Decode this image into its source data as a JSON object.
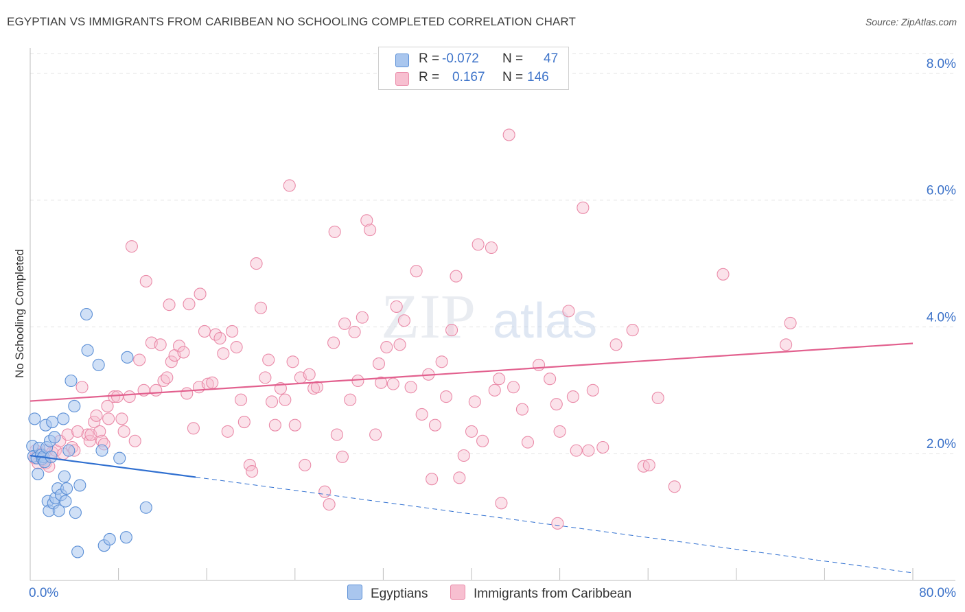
{
  "title": "EGYPTIAN VS IMMIGRANTS FROM CARIBBEAN NO SCHOOLING COMPLETED CORRELATION CHART",
  "source": "Source: ZipAtlas.com",
  "watermark": {
    "zip": "ZIP",
    "atlas": "atlas"
  },
  "legend": {
    "egyptians": {
      "r_label": "R =",
      "r_value": "-0.072",
      "n_label": "N =",
      "n_value": "47"
    },
    "caribbean": {
      "r_label": "R =",
      "r_value": "0.167",
      "n_label": "N =",
      "n_value": "146"
    }
  },
  "bottom_legend": {
    "egyptians": "Egyptians",
    "caribbean": "Immigrants from Caribbean"
  },
  "colors": {
    "egyptians_fill": "#a9c6ee",
    "egyptians_stroke": "#5b8fd6",
    "egyptians_line": "#2f6fd0",
    "caribbean_fill": "#f7bfd0",
    "caribbean_stroke": "#ea8aa8",
    "caribbean_line": "#e2608e",
    "tick_label": "#3d73c9",
    "grid": "#e3e3e3"
  },
  "chart_data": {
    "type": "scatter",
    "title": "EGYPTIAN VS IMMIGRANTS FROM CARIBBEAN NO SCHOOLING COMPLETED CORRELATION CHART",
    "xlabel": "",
    "ylabel": "No Schooling Completed",
    "xlim": [
      0,
      80
    ],
    "ylim": [
      0,
      8.4
    ],
    "x_tick_labels": [
      "0.0%",
      "80.0%"
    ],
    "y_ticks": [
      2,
      4,
      6,
      8
    ],
    "y_tick_labels": [
      "2.0%",
      "4.0%",
      "6.0%",
      "8.0%"
    ],
    "series": [
      {
        "name": "Egyptians",
        "trend": {
          "x0": 0,
          "y0": 1.97,
          "x1": 15,
          "y1": 1.63,
          "dashed_to_x": 80,
          "dashed_to_y": 0.12
        },
        "points": [
          [
            0.2,
            2.12
          ],
          [
            0.3,
            1.96
          ],
          [
            0.4,
            2.55
          ],
          [
            0.6,
            1.93
          ],
          [
            0.7,
            1.68
          ],
          [
            0.8,
            2.09
          ],
          [
            1.0,
            1.98
          ],
          [
            1.1,
            1.92
          ],
          [
            1.2,
            1.95
          ],
          [
            1.3,
            1.87
          ],
          [
            1.4,
            2.45
          ],
          [
            1.5,
            2.1
          ],
          [
            1.6,
            1.25
          ],
          [
            1.7,
            1.1
          ],
          [
            1.8,
            2.2
          ],
          [
            1.9,
            1.95
          ],
          [
            2.0,
            2.5
          ],
          [
            2.1,
            1.22
          ],
          [
            2.2,
            2.26
          ],
          [
            2.3,
            1.3
          ],
          [
            2.5,
            1.45
          ],
          [
            2.6,
            1.1
          ],
          [
            2.8,
            1.35
          ],
          [
            3.0,
            2.55
          ],
          [
            3.1,
            1.64
          ],
          [
            3.2,
            1.25
          ],
          [
            3.3,
            1.45
          ],
          [
            3.5,
            2.05
          ],
          [
            3.7,
            3.15
          ],
          [
            4.0,
            2.75
          ],
          [
            4.1,
            1.07
          ],
          [
            4.3,
            0.45
          ],
          [
            4.5,
            1.5
          ],
          [
            5.1,
            4.2
          ],
          [
            5.2,
            3.63
          ],
          [
            6.2,
            3.4
          ],
          [
            6.5,
            2.05
          ],
          [
            6.7,
            0.55
          ],
          [
            7.2,
            0.65
          ],
          [
            8.1,
            1.93
          ],
          [
            8.7,
            0.68
          ],
          [
            8.8,
            3.52
          ],
          [
            10.5,
            1.15
          ]
        ]
      },
      {
        "name": "Immigrants from Caribbean",
        "trend": {
          "x0": 0,
          "y0": 2.83,
          "x1": 80,
          "y1": 3.74
        },
        "points": [
          [
            0.4,
            1.93
          ],
          [
            0.5,
            2.05
          ],
          [
            0.7,
            1.85
          ],
          [
            1.0,
            2.0
          ],
          [
            1.2,
            1.9
          ],
          [
            1.4,
            1.85
          ],
          [
            1.5,
            2.05
          ],
          [
            1.7,
            1.8
          ],
          [
            2.0,
            2.02
          ],
          [
            2.3,
            2.05
          ],
          [
            2.7,
            2.2
          ],
          [
            3.0,
            2.0
          ],
          [
            3.4,
            2.3
          ],
          [
            3.8,
            2.1
          ],
          [
            4.0,
            2.05
          ],
          [
            4.3,
            2.35
          ],
          [
            4.7,
            3.05
          ],
          [
            5.2,
            2.3
          ],
          [
            5.4,
            2.2
          ],
          [
            5.5,
            2.3
          ],
          [
            5.8,
            2.5
          ],
          [
            6.0,
            2.6
          ],
          [
            6.3,
            2.35
          ],
          [
            6.5,
            2.2
          ],
          [
            6.7,
            2.15
          ],
          [
            7.0,
            2.75
          ],
          [
            7.1,
            2.55
          ],
          [
            7.6,
            2.9
          ],
          [
            7.9,
            2.9
          ],
          [
            8.3,
            2.55
          ],
          [
            8.5,
            2.35
          ],
          [
            9.0,
            2.9
          ],
          [
            9.2,
            5.27
          ],
          [
            9.5,
            2.2
          ],
          [
            9.9,
            3.48
          ],
          [
            10.3,
            3.0
          ],
          [
            10.5,
            4.72
          ],
          [
            11.0,
            3.75
          ],
          [
            11.4,
            3.0
          ],
          [
            11.8,
            3.72
          ],
          [
            12.1,
            3.15
          ],
          [
            12.4,
            3.2
          ],
          [
            12.6,
            4.35
          ],
          [
            12.8,
            3.45
          ],
          [
            13.1,
            3.55
          ],
          [
            13.5,
            3.7
          ],
          [
            13.9,
            3.6
          ],
          [
            14.2,
            2.95
          ],
          [
            14.4,
            4.36
          ],
          [
            14.8,
            2.4
          ],
          [
            15.3,
            3.05
          ],
          [
            15.4,
            4.52
          ],
          [
            15.8,
            3.93
          ],
          [
            16.1,
            3.1
          ],
          [
            16.5,
            3.12
          ],
          [
            16.8,
            3.88
          ],
          [
            17.2,
            3.82
          ],
          [
            17.5,
            3.58
          ],
          [
            17.9,
            2.35
          ],
          [
            18.3,
            3.93
          ],
          [
            18.7,
            3.68
          ],
          [
            19.1,
            2.85
          ],
          [
            19.4,
            2.5
          ],
          [
            19.9,
            1.82
          ],
          [
            20.1,
            1.72
          ],
          [
            20.5,
            5.0
          ],
          [
            20.9,
            4.3
          ],
          [
            21.3,
            3.2
          ],
          [
            21.6,
            3.48
          ],
          [
            21.9,
            2.82
          ],
          [
            22.2,
            2.45
          ],
          [
            22.7,
            3.03
          ],
          [
            23.1,
            2.85
          ],
          [
            23.5,
            6.23
          ],
          [
            23.8,
            3.45
          ],
          [
            24.0,
            2.45
          ],
          [
            24.5,
            3.2
          ],
          [
            24.9,
            1.82
          ],
          [
            25.3,
            3.25
          ],
          [
            25.7,
            3.03
          ],
          [
            26.0,
            3.05
          ],
          [
            26.7,
            1.4
          ],
          [
            27.1,
            1.2
          ],
          [
            27.5,
            3.75
          ],
          [
            27.6,
            5.5
          ],
          [
            27.8,
            2.3
          ],
          [
            28.3,
            1.95
          ],
          [
            28.5,
            4.05
          ],
          [
            29.0,
            2.85
          ],
          [
            29.4,
            3.92
          ],
          [
            29.7,
            3.15
          ],
          [
            30.1,
            4.15
          ],
          [
            30.5,
            5.68
          ],
          [
            30.8,
            5.53
          ],
          [
            31.3,
            2.3
          ],
          [
            31.6,
            3.42
          ],
          [
            31.8,
            3.12
          ],
          [
            32.3,
            3.68
          ],
          [
            32.9,
            3.1
          ],
          [
            33.2,
            4.32
          ],
          [
            33.5,
            3.72
          ],
          [
            33.9,
            4.1
          ],
          [
            34.5,
            3.05
          ],
          [
            35.0,
            4.88
          ],
          [
            35.5,
            2.62
          ],
          [
            36.1,
            3.25
          ],
          [
            36.4,
            1.6
          ],
          [
            36.7,
            2.45
          ],
          [
            37.3,
            3.45
          ],
          [
            37.7,
            2.9
          ],
          [
            38.2,
            3.95
          ],
          [
            38.6,
            4.8
          ],
          [
            38.9,
            1.62
          ],
          [
            39.3,
            1.97
          ],
          [
            40.0,
            2.35
          ],
          [
            40.3,
            2.82
          ],
          [
            40.6,
            5.3
          ],
          [
            41.0,
            2.2
          ],
          [
            41.8,
            5.25
          ],
          [
            42.1,
            3.0
          ],
          [
            42.5,
            3.18
          ],
          [
            42.7,
            1.22
          ],
          [
            43.4,
            7.03
          ],
          [
            43.8,
            3.05
          ],
          [
            44.6,
            2.7
          ],
          [
            45.1,
            2.18
          ],
          [
            46.1,
            3.4
          ],
          [
            47.1,
            3.18
          ],
          [
            47.7,
            2.78
          ],
          [
            47.8,
            0.9
          ],
          [
            48.0,
            2.35
          ],
          [
            48.8,
            4.25
          ],
          [
            49.2,
            2.9
          ],
          [
            49.5,
            2.05
          ],
          [
            50.1,
            5.88
          ],
          [
            50.6,
            2.05
          ],
          [
            51.0,
            3.0
          ],
          [
            51.9,
            2.1
          ],
          [
            53.1,
            3.72
          ],
          [
            54.6,
            3.95
          ],
          [
            55.6,
            1.8
          ],
          [
            56.1,
            1.82
          ],
          [
            56.9,
            2.88
          ],
          [
            58.4,
            1.48
          ],
          [
            62.8,
            4.83
          ],
          [
            68.5,
            3.72
          ],
          [
            68.9,
            4.06
          ]
        ]
      }
    ]
  }
}
